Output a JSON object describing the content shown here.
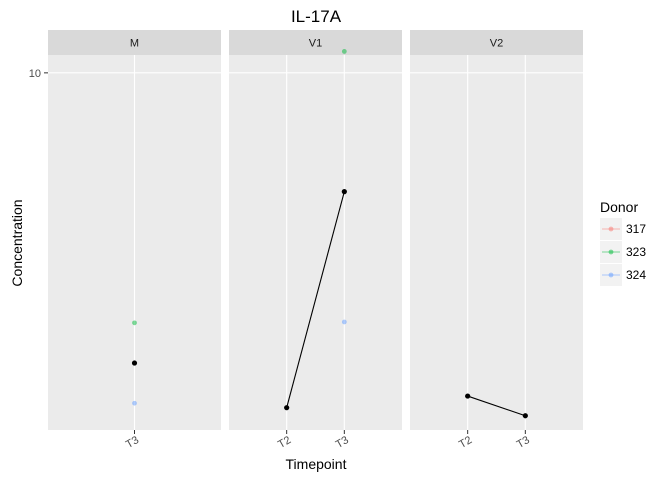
{
  "chart_data": {
    "type": "scatter",
    "title": "IL-17A",
    "xlabel": "Timepoint",
    "ylabel": "Concentration",
    "y_ticks": [
      10
    ],
    "y_tick_labels": [
      "10"
    ],
    "ylim": [
      6.0,
      10.2
    ],
    "legend": {
      "title": "Donor",
      "placement": "right",
      "entries": [
        {
          "label": "317",
          "color": "#F8766D"
        },
        {
          "label": "323",
          "color": "#00BA38"
        },
        {
          "label": "324",
          "color": "#619CFF"
        }
      ]
    },
    "panels": [
      {
        "name": "M",
        "categories": [
          "T3"
        ],
        "points": [
          {
            "x": "T3",
            "y": 7.2,
            "donor": "323"
          },
          {
            "x": "T3",
            "y": 6.75,
            "donor": "mean"
          },
          {
            "x": "T3",
            "y": 6.3,
            "donor": "324"
          }
        ],
        "line": []
      },
      {
        "name": "V1",
        "categories": [
          "T2",
          "T3"
        ],
        "points": [
          {
            "x": "T3",
            "y": 10.24,
            "donor": "323"
          },
          {
            "x": "T3",
            "y": 8.67,
            "donor": "mean"
          },
          {
            "x": "T3",
            "y": 7.21,
            "donor": "324"
          },
          {
            "x": "T2",
            "y": 6.25,
            "donor": "mean"
          }
        ],
        "line": [
          {
            "x": "T2",
            "y": 6.25
          },
          {
            "x": "T3",
            "y": 8.67
          }
        ]
      },
      {
        "name": "V2",
        "categories": [
          "T2",
          "T3"
        ],
        "points": [
          {
            "x": "T2",
            "y": 6.38,
            "donor": "mean"
          },
          {
            "x": "T3",
            "y": 6.16,
            "donor": "mean"
          }
        ],
        "line": [
          {
            "x": "T2",
            "y": 6.38
          },
          {
            "x": "T3",
            "y": 6.16
          }
        ]
      }
    ],
    "colors": {
      "panel_bg": "#EBEBEB",
      "strip_bg": "#D9D9D9",
      "grid": "#FFFFFF",
      "mean": "#000000"
    }
  }
}
